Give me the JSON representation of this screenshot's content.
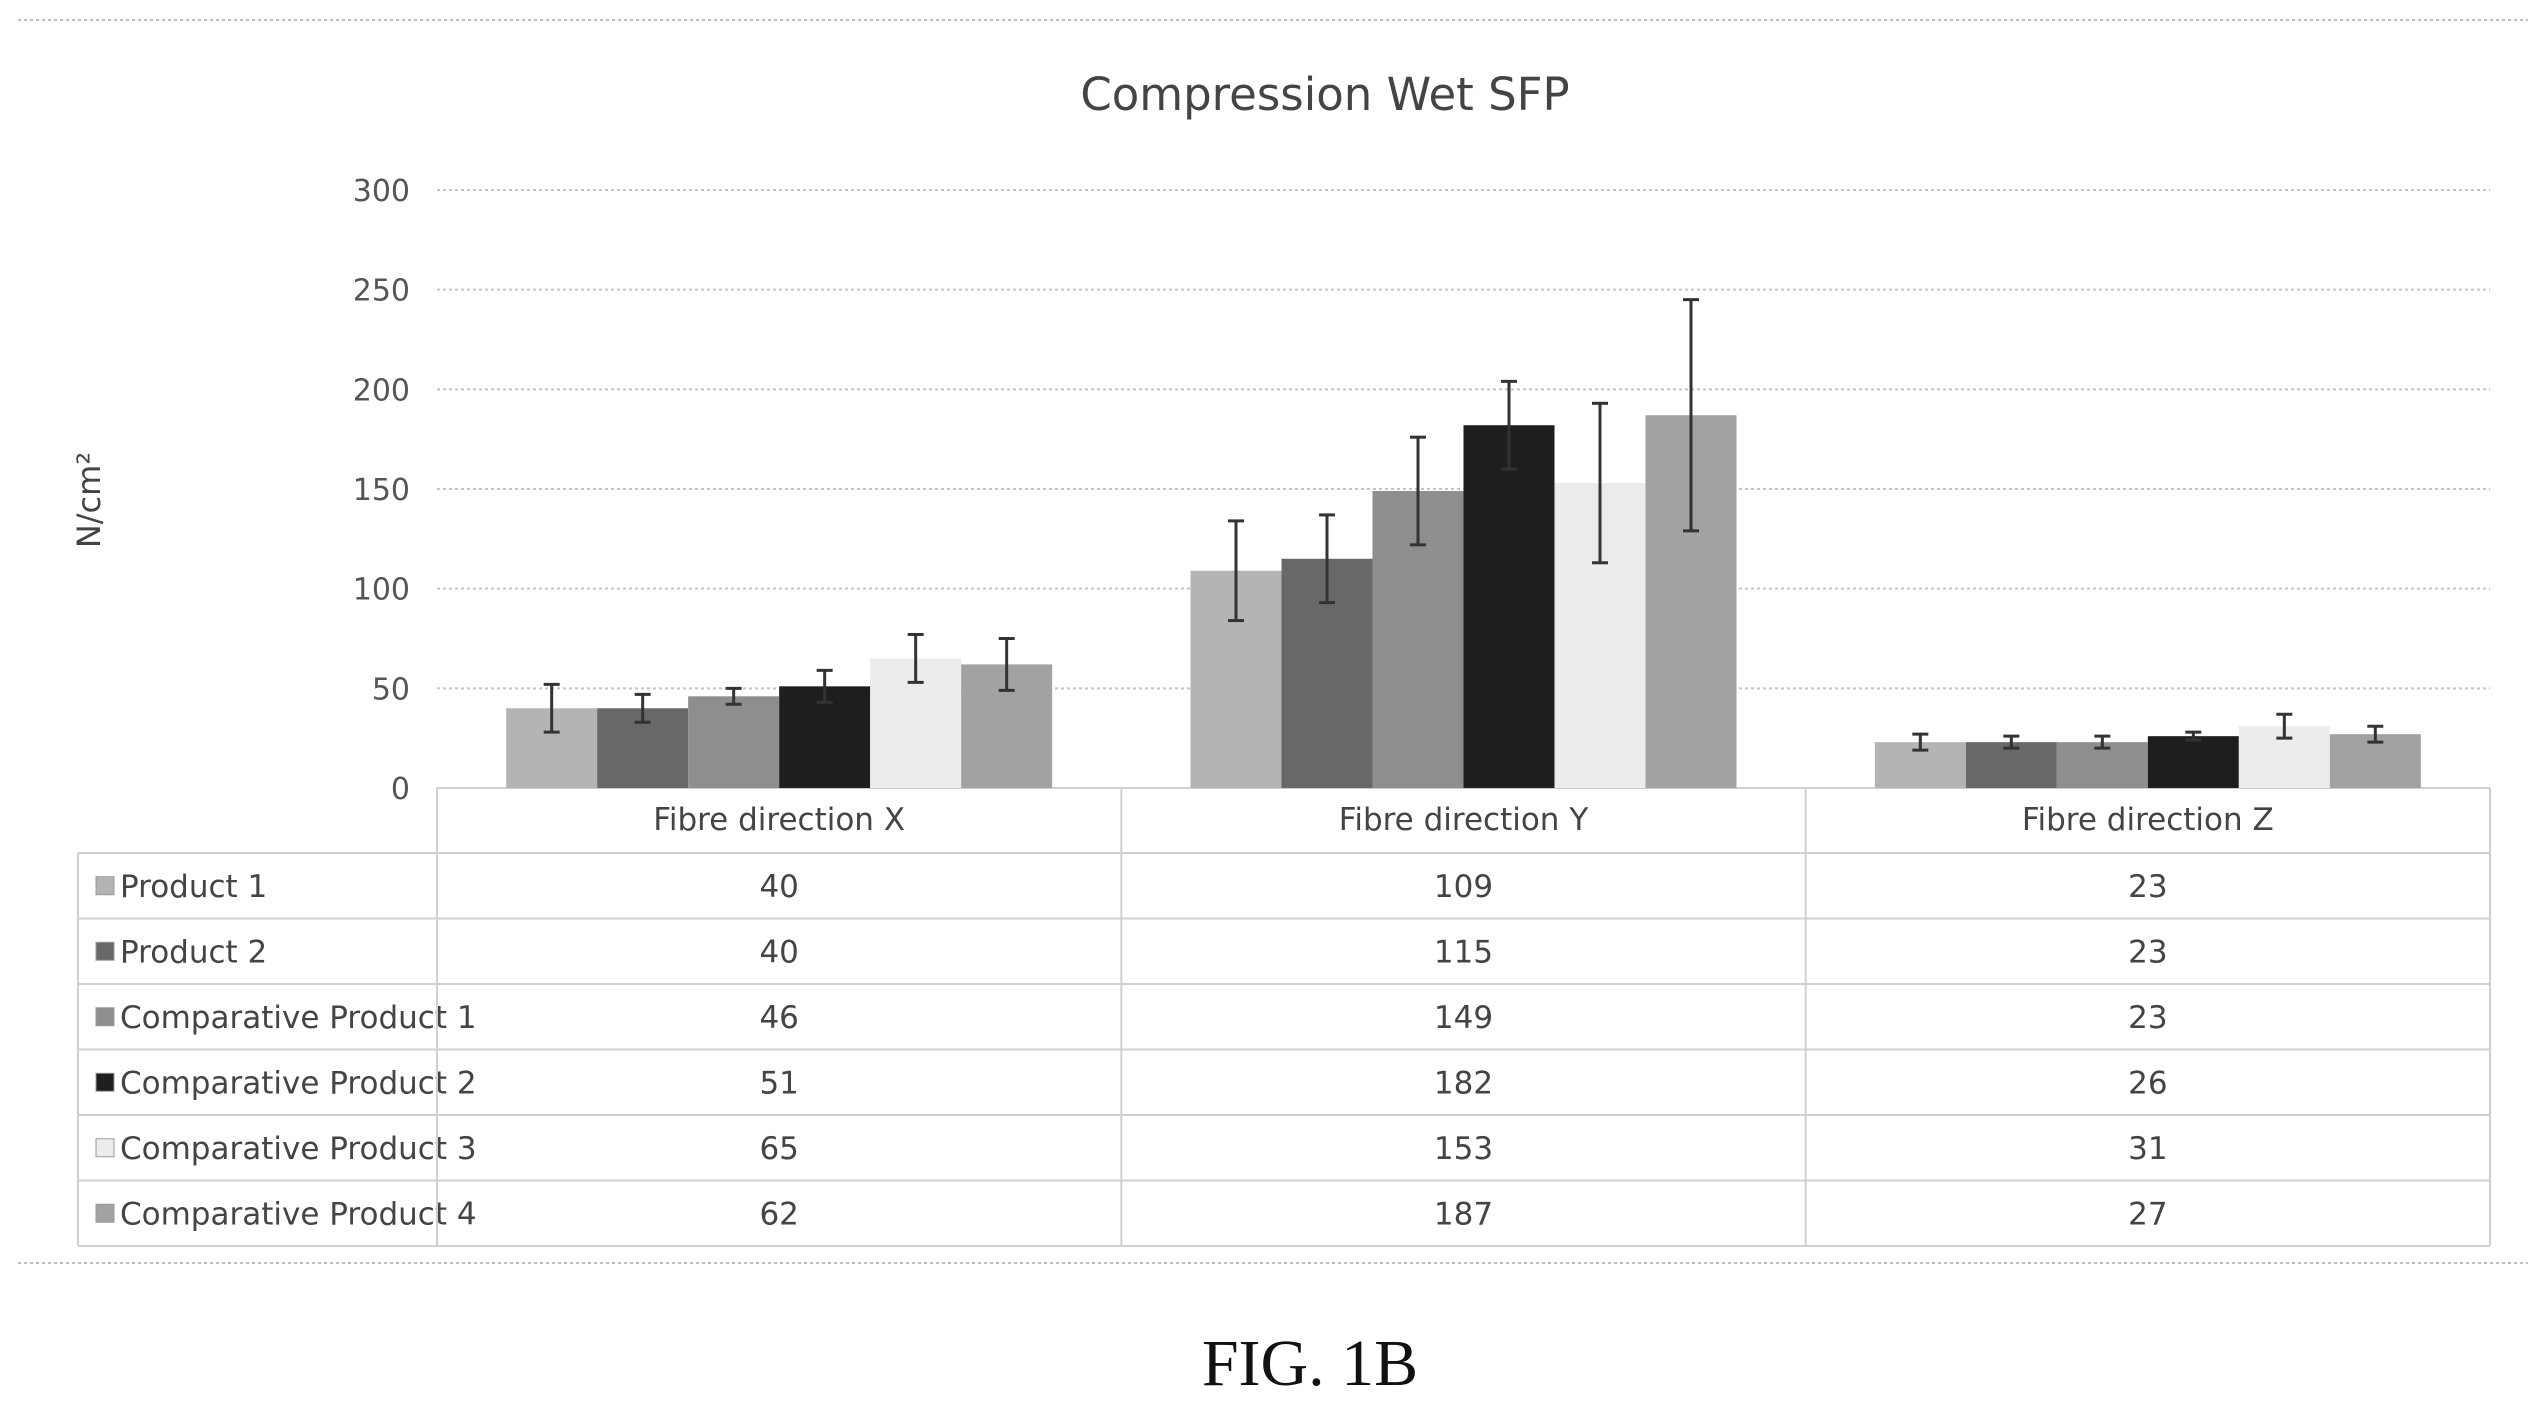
{
  "figure_caption": "FIG. 1B",
  "chart_data": {
    "type": "bar",
    "title": "Compression Wet SFP",
    "xlabel": "",
    "ylabel": "N/cm²",
    "ylim": [
      0,
      300
    ],
    "yticks": [
      0,
      50,
      100,
      150,
      200,
      250,
      300
    ],
    "grid": true,
    "legend": "data table below chart",
    "categories": [
      "Fibre direction X",
      "Fibre direction Y",
      "Fibre direction Z"
    ],
    "series": [
      {
        "name": "Product 1",
        "values": [
          40,
          109,
          23
        ],
        "error": [
          12,
          25,
          4
        ],
        "color": "#b4b4b4"
      },
      {
        "name": "Product 2",
        "values": [
          40,
          115,
          23
        ],
        "error": [
          7,
          22,
          3
        ],
        "color": "#686868"
      },
      {
        "name": "Comparative Product 1",
        "values": [
          46,
          149,
          23
        ],
        "error": [
          4,
          27,
          3
        ],
        "color": "#8e8e8e"
      },
      {
        "name": "Comparative Product 2",
        "values": [
          51,
          182,
          26
        ],
        "error": [
          8,
          22,
          2
        ],
        "color": "#1e1e1e"
      },
      {
        "name": "Comparative Product 3",
        "values": [
          65,
          153,
          31
        ],
        "error": [
          12,
          40,
          6
        ],
        "color": "#ececec"
      },
      {
        "name": "Comparative Product 4",
        "values": [
          62,
          187,
          27
        ],
        "error": [
          13,
          58,
          4
        ],
        "color": "#a2a2a2"
      }
    ],
    "table": {
      "rows": [
        {
          "label": "Product 1",
          "cells": [
            "40",
            "109",
            "23"
          ]
        },
        {
          "label": "Product 2",
          "cells": [
            "40",
            "115",
            "23"
          ]
        },
        {
          "label": "Comparative Product 1",
          "cells": [
            "46",
            "149",
            "23"
          ]
        },
        {
          "label": "Comparative Product 2",
          "cells": [
            "51",
            "182",
            "26"
          ]
        },
        {
          "label": "Comparative Product 3",
          "cells": [
            "65",
            "153",
            "31"
          ]
        },
        {
          "label": "Comparative Product 4",
          "cells": [
            "62",
            "187",
            "27"
          ]
        }
      ]
    }
  }
}
